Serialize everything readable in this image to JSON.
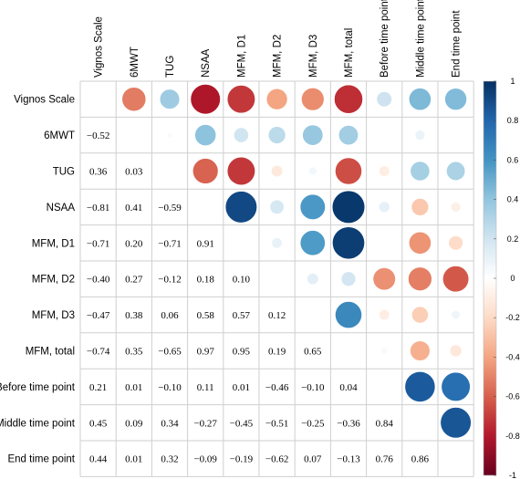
{
  "chart_data": {
    "type": "heatmap",
    "subtype": "correlation-matrix-mixed",
    "upper_method": "circle",
    "lower_method": "number",
    "variables": [
      "Vignos Scale",
      "6MWT",
      "TUG",
      "NSAA",
      "MFM, D1",
      "MFM, D2",
      "MFM, D3",
      "MFM, total",
      "Before time point",
      "Middle time point",
      "End time point"
    ],
    "matrix": [
      [
        1,
        -0.52,
        0.36,
        -0.81,
        -0.71,
        -0.4,
        -0.47,
        -0.74,
        0.21,
        0.45,
        0.44
      ],
      [
        -0.52,
        1,
        0.03,
        0.41,
        0.2,
        0.27,
        0.38,
        0.35,
        0.01,
        0.09,
        0.01
      ],
      [
        0.36,
        0.03,
        1,
        -0.59,
        -0.71,
        -0.12,
        0.06,
        -0.65,
        -0.1,
        0.34,
        0.32
      ],
      [
        -0.81,
        0.41,
        -0.59,
        1,
        0.91,
        0.18,
        0.58,
        0.97,
        0.11,
        -0.27,
        -0.09
      ],
      [
        -0.71,
        0.2,
        -0.71,
        0.91,
        1,
        0.1,
        0.57,
        0.95,
        0.01,
        -0.45,
        -0.19
      ],
      [
        -0.4,
        0.27,
        -0.12,
        0.18,
        0.1,
        1,
        0.12,
        0.19,
        -0.46,
        -0.51,
        -0.62
      ],
      [
        -0.47,
        0.38,
        0.06,
        0.58,
        0.57,
        0.12,
        1,
        0.65,
        -0.1,
        -0.25,
        0.07
      ],
      [
        -0.74,
        0.35,
        -0.65,
        0.97,
        0.95,
        0.19,
        0.65,
        1,
        0.04,
        -0.36,
        -0.13
      ],
      [
        0.21,
        0.01,
        -0.1,
        0.11,
        0.01,
        -0.46,
        -0.1,
        0.04,
        1,
        0.84,
        0.76
      ],
      [
        0.45,
        0.09,
        0.34,
        -0.27,
        -0.45,
        -0.51,
        -0.25,
        -0.36,
        0.84,
        1,
        0.86
      ],
      [
        0.44,
        0.01,
        0.32,
        -0.09,
        -0.19,
        -0.62,
        0.07,
        -0.13,
        0.76,
        0.86,
        1
      ]
    ],
    "show_diagonal": false,
    "colorbar": {
      "range": [
        -1,
        1
      ],
      "ticks": [
        "1",
        "0.8",
        "0.6",
        "0.4",
        "0.2",
        "0",
        "-0.2",
        "-0.4",
        "-0.6",
        "-0.8",
        "-1"
      ],
      "colors": [
        "#67001F",
        "#B2182B",
        "#D6604D",
        "#F4A582",
        "#FDDBC7",
        "#FFFFFF",
        "#D1E5F0",
        "#92C5DE",
        "#4393C3",
        "#2166AC",
        "#053061"
      ]
    },
    "grid": true
  }
}
